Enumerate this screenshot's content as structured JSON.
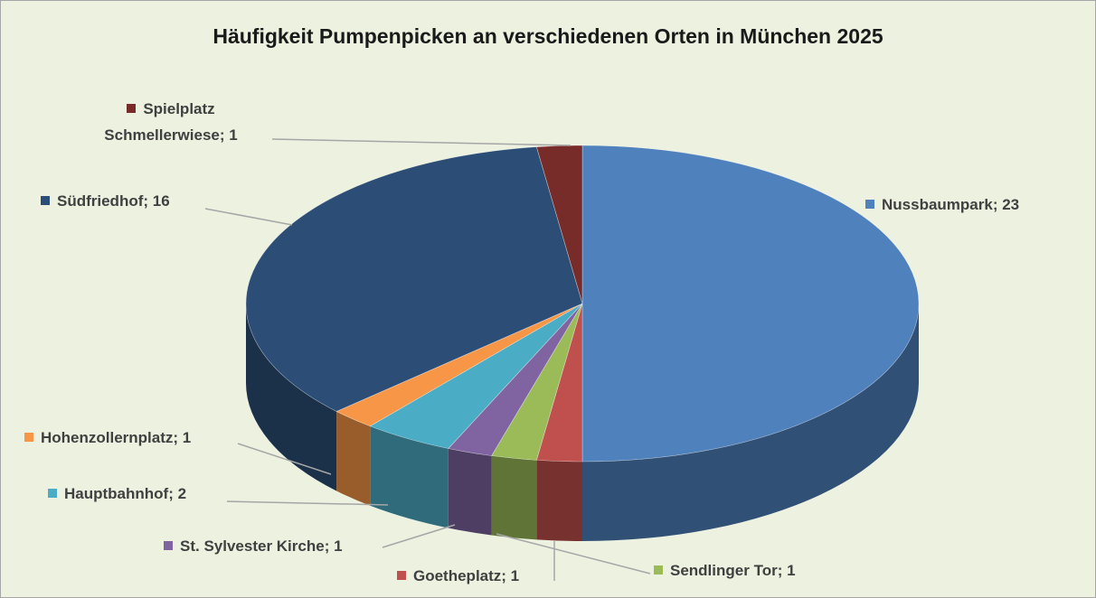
{
  "chart_data": {
    "type": "pie3d",
    "title": "Häufigkeit Pumpenpicken an verschiedenen Orten in München 2025",
    "categories": [
      "Nussbaumpark",
      "Goetheplatz",
      "Sendlinger Tor",
      "St. Sylvester Kirche",
      "Hauptbahnhof",
      "Hohenzollernplatz",
      "Südfriedhof",
      "Spielplatz Schmellerwiese"
    ],
    "values": [
      23,
      1,
      1,
      1,
      2,
      1,
      16,
      1
    ],
    "value_labels": [
      "Nussbaumpark; 23",
      "Goetheplatz; 1",
      "Sendlinger Tor; 1",
      "St. Sylvester Kirche; 1",
      "Hauptbahnhof; 2",
      "Hohenzollernplatz; 1",
      "Südfriedhof; 16",
      "Spielplatz Schmellerwiese; 1"
    ],
    "colors": [
      "#4f81bd",
      "#c0504d",
      "#9bbb59",
      "#8064a2",
      "#4bacc6",
      "#f79646",
      "#2c4d75",
      "#772c2a"
    ]
  }
}
